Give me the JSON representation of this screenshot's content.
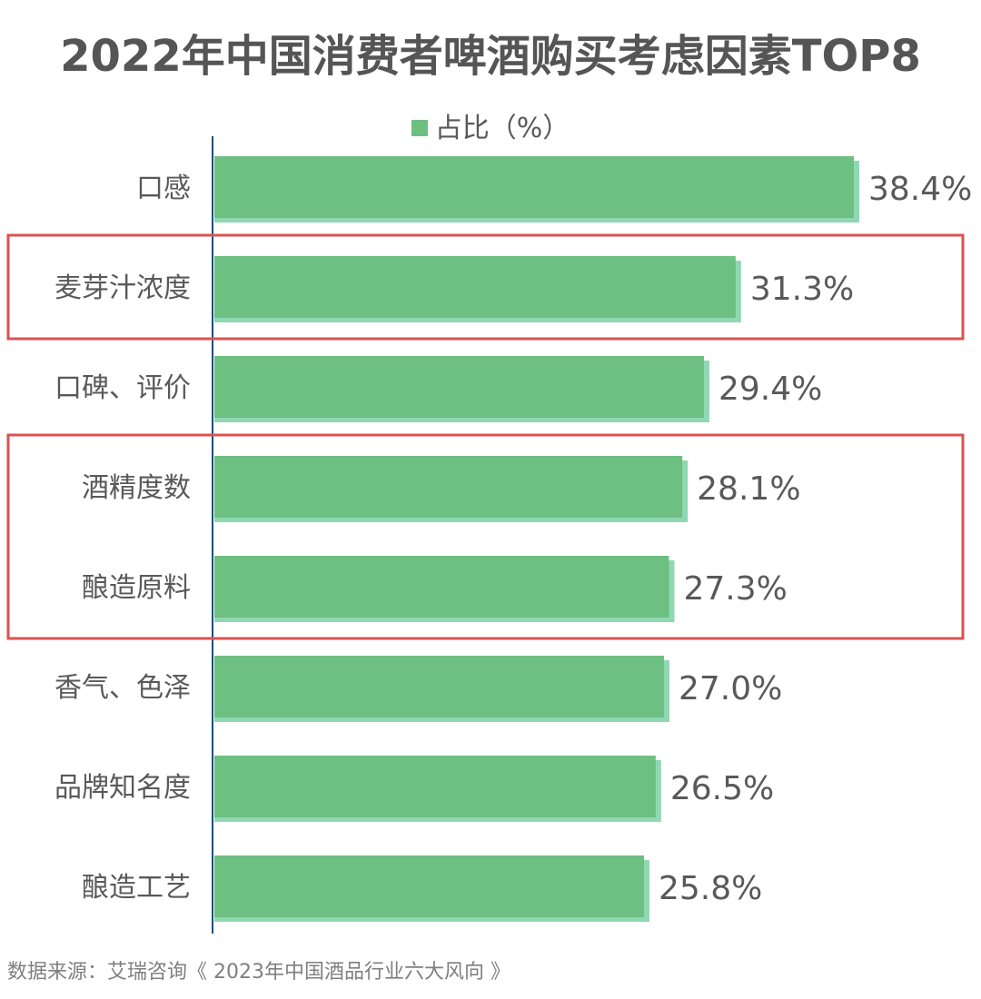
{
  "title": "2022年中国消费者啤酒购买考虑因素TOP8",
  "legend": {
    "label": "占比（%）"
  },
  "source": "数据来源：艾瑞咨询《 2023年中国酒品行业六大风向 》",
  "colors": {
    "bar": "#6dbf82",
    "bar_shadow": "#8fd8b2",
    "axis": "#1f4e79",
    "highlight_box": "#d9534f",
    "category_text": "#595959",
    "value_text": "#595959"
  },
  "chart_data": {
    "type": "bar",
    "orientation": "horizontal",
    "categories": [
      "口感",
      "麦芽汁浓度",
      "口碑、评价",
      "酒精度数",
      "酿造原料",
      "香气、色泽",
      "品牌知名度",
      "酿造工艺"
    ],
    "series": [
      {
        "name": "占比（%）",
        "values": [
          38.4,
          31.3,
          29.4,
          28.1,
          27.3,
          27.0,
          26.5,
          25.8
        ]
      }
    ],
    "value_labels": [
      "38.4%",
      "31.3%",
      "29.4%",
      "28.1%",
      "27.3%",
      "27.0%",
      "26.5%",
      "25.8%"
    ],
    "xlim": [
      0,
      38.4
    ],
    "grid": false,
    "legend_position": "top-center",
    "highlight_groups": [
      [
        "麦芽汁浓度"
      ],
      [
        "酒精度数",
        "酿造原料"
      ]
    ]
  }
}
